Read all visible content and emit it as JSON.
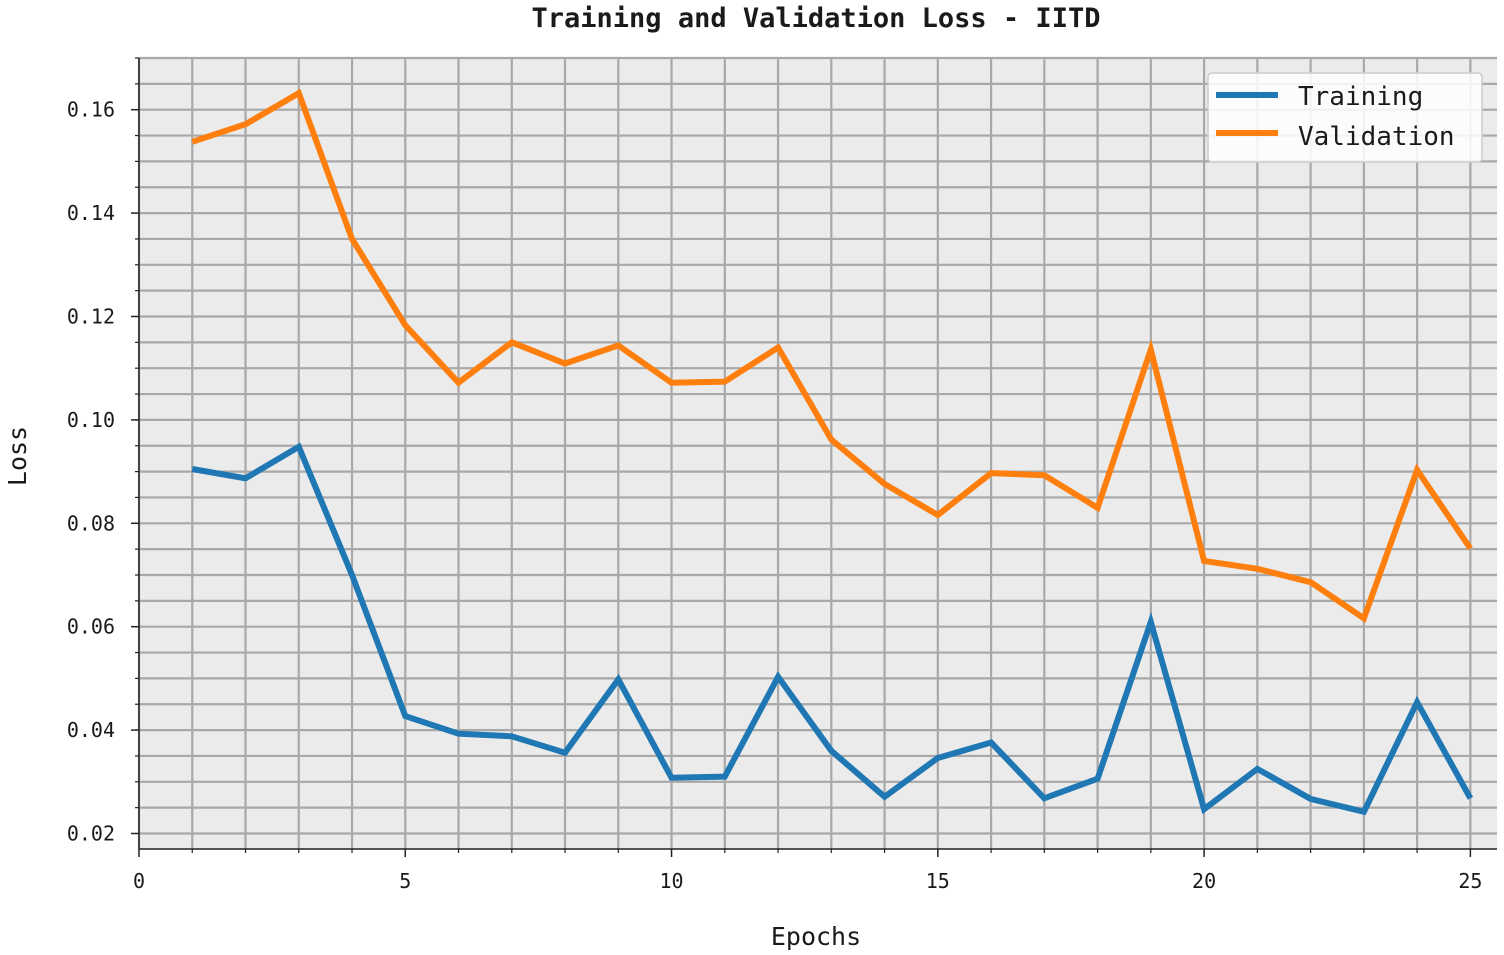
{
  "chart_data": {
    "type": "line",
    "title": "Training and Validation Loss - IITD",
    "xlabel": "Epochs",
    "ylabel": "Loss",
    "xlim": [
      0,
      25.5
    ],
    "ylim": [
      0.017,
      0.17
    ],
    "xticks": [
      0,
      5,
      10,
      15,
      20,
      25
    ],
    "xtick_labels": [
      "0",
      "5",
      "10",
      "15",
      "20",
      "25"
    ],
    "yticks": [
      0.02,
      0.04,
      0.06,
      0.08,
      0.1,
      0.12,
      0.14,
      0.16
    ],
    "ytick_labels": [
      "0.02",
      "0.04",
      "0.06",
      "0.08",
      "0.10",
      "0.12",
      "0.14",
      "0.16"
    ],
    "grid": true,
    "legend_position": "top-right",
    "x": [
      1,
      2,
      3,
      4,
      5,
      6,
      7,
      8,
      9,
      10,
      11,
      12,
      13,
      14,
      15,
      16,
      17,
      18,
      19,
      20,
      21,
      22,
      23,
      24,
      25
    ],
    "series": [
      {
        "name": "Training",
        "color": "#1f77b4",
        "values": [
          0.0905,
          0.0887,
          0.0948,
          0.07,
          0.0427,
          0.0393,
          0.0388,
          0.0356,
          0.0498,
          0.0308,
          0.031,
          0.0503,
          0.036,
          0.0271,
          0.0346,
          0.0376,
          0.0268,
          0.0306,
          0.0609,
          0.0247,
          0.0325,
          0.0267,
          0.0242,
          0.0454,
          0.0268
        ]
      },
      {
        "name": "Validation",
        "color": "#ff7f0e",
        "values": [
          0.1538,
          0.1572,
          0.1632,
          0.135,
          0.1183,
          0.1072,
          0.115,
          0.1109,
          0.1144,
          0.1072,
          0.1074,
          0.114,
          0.0962,
          0.0876,
          0.0816,
          0.0897,
          0.0893,
          0.083,
          0.1136,
          0.0727,
          0.0712,
          0.0686,
          0.0616,
          0.0903,
          0.0751
        ]
      }
    ]
  }
}
